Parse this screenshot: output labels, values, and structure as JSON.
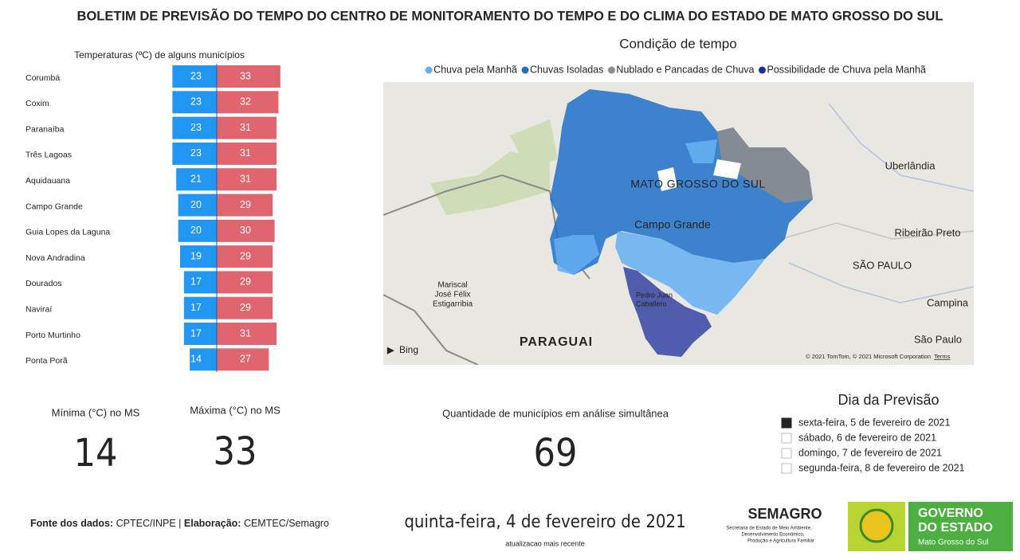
{
  "header": {
    "title": "BOLETIM DE PREVISÃO DO TEMPO DO CENTRO DE MONITORAMENTO DO TEMPO E DO CLIMA DO ESTADO DE MATO GROSSO DO SUL"
  },
  "chart_data": {
    "type": "bar",
    "title": "Temperaturas (ºC) de alguns municípios",
    "categories": [
      "Corumbá",
      "Coxim",
      "Paranaíba",
      "Três Lagoas",
      "Aquidauana",
      "Campo Grande",
      "Guia Lopes da Laguna",
      "Nova Andradina",
      "Dourados",
      "Naviraí",
      "Porto Murtinho",
      "Ponta Porã"
    ],
    "series": [
      {
        "color": "#2196f3",
        "values": [
          23,
          23,
          23,
          23,
          21,
          20,
          20,
          19,
          17,
          17,
          17,
          14
        ]
      },
      {
        "color": "#e0656f",
        "values": [
          33,
          32,
          31,
          31,
          31,
          29,
          30,
          29,
          29,
          29,
          31,
          27
        ]
      }
    ]
  },
  "map": {
    "title": "Condição de tempo",
    "legend": [
      {
        "label": "Chuva pela Manhã",
        "color": "#64aef2"
      },
      {
        "label": "Chuvas Isoladas",
        "color": "#1f70c8"
      },
      {
        "label": "Nublado e Pancadas de Chuva",
        "color": "#8c8c8c"
      },
      {
        "label": "Possibilidade de Chuva pela Manhã",
        "color": "#1c2f9a"
      }
    ],
    "labels": [
      "MATO GROSSO DO SUL",
      "Campo Grande",
      "Uberlândia",
      "Ribeirão Preto",
      "SÃO PAULO",
      "Campina",
      "São Paulo",
      "PARAGUAI",
      "Mariscal",
      "José Félix",
      "Estigarribia",
      "Pedro Juan",
      "Caballero"
    ],
    "provider": "Bing",
    "attribution": "© 2021 TomTom, © 2021 Microsoft Corporation",
    "terms": "Terms"
  },
  "kpis": [
    {
      "label": "Mínima (°C) no MS",
      "value": 14
    },
    {
      "label": "Máxima (°C) no MS",
      "value": 33
    },
    {
      "label": "Quantidade de municípios em análise simultânea",
      "value": 69
    }
  ],
  "slicer": {
    "title": "Dia da Previsão",
    "options": [
      "sexta-feira, 5 de fevereiro de 2021",
      "sábado, 6 de fevereiro de 2021",
      "domingo, 7 de fevereiro de 2021",
      "segunda-feira, 8 de fevereiro de 2021"
    ],
    "selected": 0
  },
  "footer": {
    "source_label": "Fonte dos dados:",
    "source": "CPTEC/INPE",
    "separator": "|",
    "credit_label": "Elaboração:",
    "credit": "CEMTEC/Semagro",
    "date": "quinta-feira, 4 de fevereiro de 2021",
    "date_caption": "atualizacao mais recente"
  },
  "logos": {
    "semagro": "SEMAGRO",
    "semagro_sub": [
      "Secretaria de Estado de Meio Ambiente,",
      "Desenvolvimento Econômico,",
      "Produção e Agricultura Familiar"
    ],
    "gov": [
      "GOVERNO",
      "DO ESTADO"
    ],
    "gov_sub": "Mato Grosso do Sul"
  }
}
